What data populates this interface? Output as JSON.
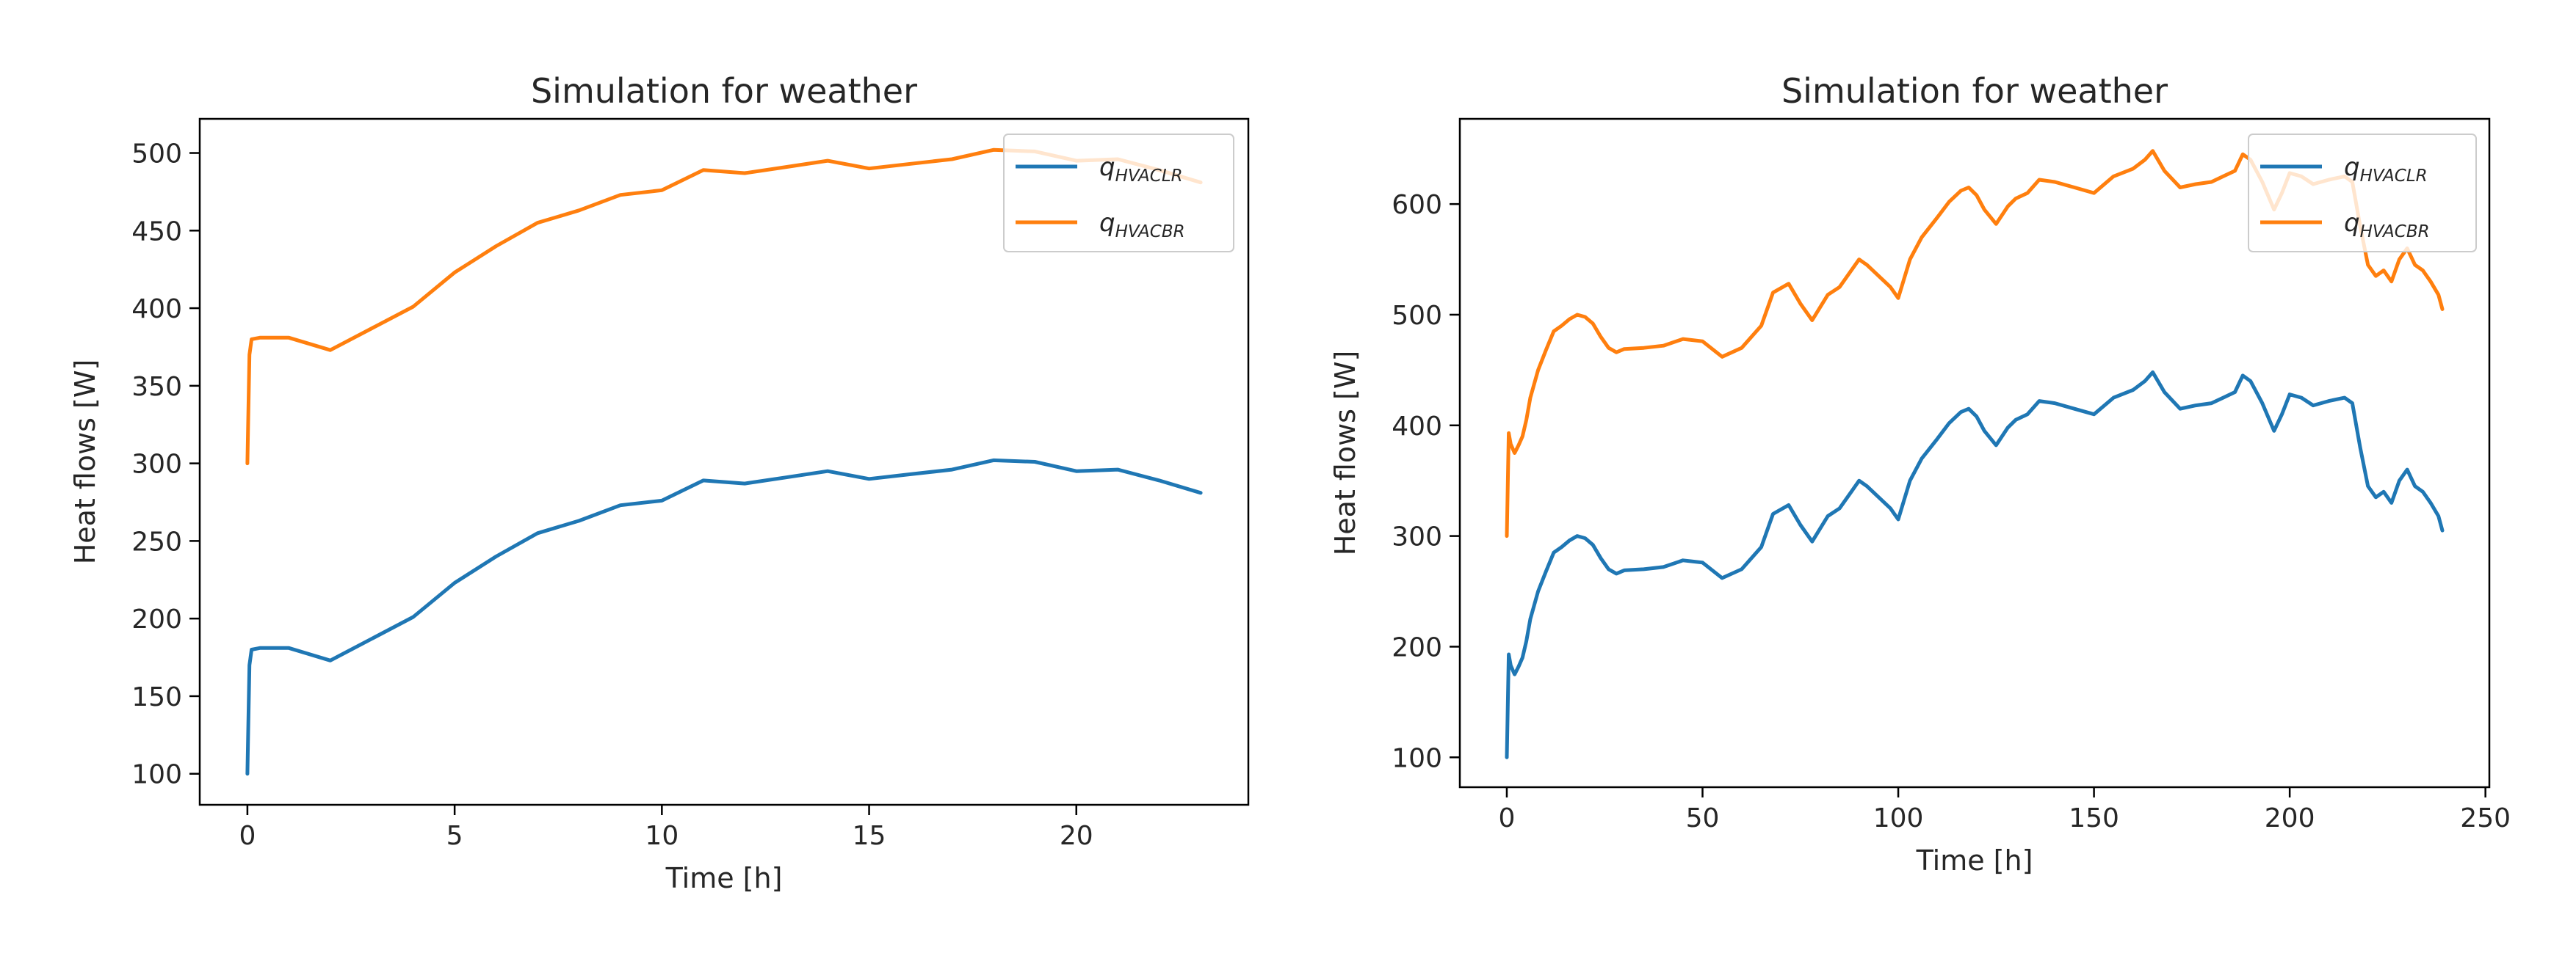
{
  "chart_data": [
    {
      "type": "line",
      "title": "Simulation for weather",
      "xlabel": "Time [h]",
      "ylabel": "Heat flows [W]",
      "xlim": [
        -1.15,
        24.15
      ],
      "ylim": [
        80,
        522
      ],
      "xticks": [
        0,
        5,
        10,
        15,
        20
      ],
      "yticks": [
        100,
        150,
        200,
        250,
        300,
        350,
        400,
        450,
        500
      ],
      "grid": false,
      "legend": "upper right",
      "series": [
        {
          "name_base": "q",
          "name_sub": "HVACLR",
          "color": "#1f77b4",
          "x": [
            0,
            0.05,
            0.1,
            0.3,
            0.6,
            1,
            2,
            3,
            4,
            5,
            6,
            7,
            8,
            9,
            10,
            11,
            12,
            13,
            14,
            15,
            16,
            17,
            18,
            19,
            20,
            21,
            22,
            23
          ],
          "y": [
            100,
            170,
            180,
            181,
            181,
            181,
            173,
            187,
            201,
            223,
            240,
            255,
            263,
            273,
            276,
            289,
            287,
            291,
            295,
            290,
            293,
            296,
            302,
            301,
            295,
            296,
            289,
            281
          ]
        },
        {
          "name_base": "q",
          "name_sub": "HVACBR",
          "color": "#ff7f0e",
          "x": [
            0,
            0.05,
            0.1,
            0.3,
            0.6,
            1,
            2,
            3,
            4,
            5,
            6,
            7,
            8,
            9,
            10,
            11,
            12,
            13,
            14,
            15,
            16,
            17,
            18,
            19,
            20,
            21,
            22,
            23
          ],
          "y": [
            300,
            370,
            380,
            381,
            381,
            381,
            373,
            387,
            401,
            423,
            440,
            455,
            463,
            473,
            476,
            489,
            487,
            491,
            495,
            490,
            493,
            496,
            502,
            501,
            495,
            496,
            489,
            481
          ]
        }
      ]
    },
    {
      "type": "line",
      "title": "Simulation for weather",
      "xlabel": "Time [h]",
      "ylabel": "Heat flows [W]",
      "xlim": [
        -12,
        251
      ],
      "ylim": [
        73,
        677
      ],
      "xticks": [
        0,
        50,
        100,
        150,
        200,
        250
      ],
      "yticks": [
        100,
        200,
        300,
        400,
        500,
        600
      ],
      "grid": false,
      "legend": "upper right",
      "series": [
        {
          "name_base": "q",
          "name_sub": "HVACLR",
          "color": "#1f77b4",
          "x": [
            0,
            0.5,
            1,
            2,
            3,
            4,
            5,
            6,
            8,
            10,
            12,
            14,
            16,
            18,
            20,
            22,
            24,
            26,
            28,
            30,
            35,
            40,
            45,
            50,
            55,
            60,
            65,
            68,
            72,
            75,
            78,
            82,
            85,
            88,
            90,
            92,
            95,
            98,
            100,
            103,
            106,
            110,
            113,
            116,
            118,
            120,
            122,
            125,
            128,
            130,
            133,
            136,
            140,
            145,
            150,
            155,
            160,
            163,
            165,
            168,
            172,
            176,
            180,
            183,
            186,
            188,
            190,
            193,
            196,
            198,
            200,
            203,
            206,
            210,
            214,
            216,
            218,
            220,
            222,
            224,
            226,
            228,
            230,
            232,
            234,
            236,
            238,
            239
          ],
          "y": [
            100,
            193,
            183,
            175,
            182,
            190,
            205,
            225,
            250,
            268,
            285,
            290,
            296,
            300,
            298,
            292,
            280,
            270,
            266,
            269,
            270,
            272,
            278,
            276,
            262,
            270,
            290,
            320,
            328,
            310,
            295,
            318,
            325,
            340,
            350,
            345,
            335,
            325,
            315,
            350,
            370,
            388,
            402,
            412,
            415,
            408,
            395,
            382,
            398,
            405,
            410,
            422,
            420,
            415,
            410,
            425,
            432,
            440,
            448,
            430,
            415,
            418,
            420,
            425,
            430,
            445,
            440,
            420,
            395,
            410,
            428,
            425,
            418,
            422,
            425,
            420,
            380,
            345,
            335,
            340,
            330,
            350,
            360,
            345,
            340,
            330,
            318,
            305
          ]
        },
        {
          "name_base": "q",
          "name_sub": "HVACBR",
          "color": "#ff7f0e",
          "x": [
            0,
            0.5,
            1,
            2,
            3,
            4,
            5,
            6,
            8,
            10,
            12,
            14,
            16,
            18,
            20,
            22,
            24,
            26,
            28,
            30,
            35,
            40,
            45,
            50,
            55,
            60,
            65,
            68,
            72,
            75,
            78,
            82,
            85,
            88,
            90,
            92,
            95,
            98,
            100,
            103,
            106,
            110,
            113,
            116,
            118,
            120,
            122,
            125,
            128,
            130,
            133,
            136,
            140,
            145,
            150,
            155,
            160,
            163,
            165,
            168,
            172,
            176,
            180,
            183,
            186,
            188,
            190,
            193,
            196,
            198,
            200,
            203,
            206,
            210,
            214,
            216,
            218,
            220,
            222,
            224,
            226,
            228,
            230,
            232,
            234,
            236,
            238,
            239
          ],
          "y": [
            300,
            393,
            383,
            375,
            382,
            390,
            405,
            425,
            450,
            468,
            485,
            490,
            496,
            500,
            498,
            492,
            480,
            470,
            466,
            469,
            470,
            472,
            478,
            476,
            462,
            470,
            490,
            520,
            528,
            510,
            495,
            518,
            525,
            540,
            550,
            545,
            535,
            525,
            515,
            550,
            570,
            588,
            602,
            612,
            615,
            608,
            595,
            582,
            598,
            605,
            610,
            622,
            620,
            615,
            610,
            625,
            632,
            640,
            648,
            630,
            615,
            618,
            620,
            625,
            630,
            645,
            640,
            620,
            595,
            610,
            628,
            625,
            618,
            622,
            625,
            620,
            580,
            545,
            535,
            540,
            530,
            550,
            560,
            545,
            540,
            530,
            518,
            505
          ]
        }
      ]
    }
  ]
}
